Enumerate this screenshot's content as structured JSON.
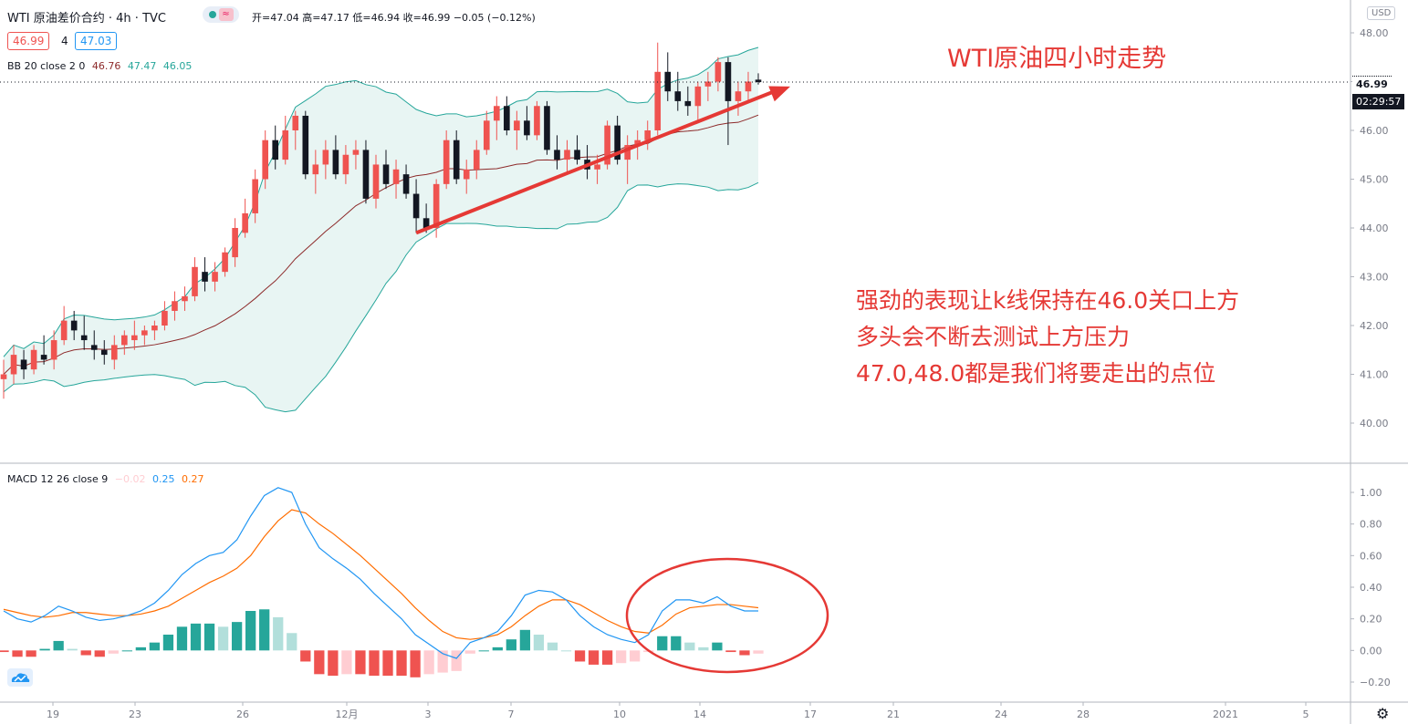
{
  "header": {
    "title": "WTI 原油差价合约 · 4h · TVC",
    "ohlc": "开=47.04 高=47.17 低=46.94 收=46.99 −0.05 (−0.12%)",
    "bid": "46.99",
    "spread": "4",
    "ask": "47.03"
  },
  "indicators": {
    "bb": {
      "label": "BB 20 close 2 0",
      "basis": "46.76",
      "upper": "47.47",
      "lower": "46.05"
    },
    "macd": {
      "label": "MACD 12 26 close 9",
      "hist": "−0.02",
      "macd": "0.25",
      "signal": "0.27"
    }
  },
  "price_scale": {
    "currency": "USD",
    "last_price": "46.99",
    "countdown": "02:29:57"
  },
  "annotations": {
    "title": "WTI原油四小时走势",
    "lines": [
      "强劲的表现让k线保持在46.0关口上方",
      "多头会不断去测试上方压力",
      "47.0,48.0都是我们将要走出的点位"
    ]
  },
  "colors": {
    "up": "#ef5350",
    "down": "#131722",
    "bb_line": "#26a69a",
    "bb_fill": "#e8f5f3",
    "basis": "#8d2a2a",
    "macd_line": "#2196f3",
    "signal_line": "#ff6d00",
    "hist_up_strong": "#26a69a",
    "hist_up_weak": "#b2dfdb",
    "hist_down_strong": "#ef5350",
    "hist_down_weak": "#ffcdd2",
    "annotation": "#e53935"
  },
  "chart_data": [
    {
      "type": "candlestick",
      "title": "WTI 原油差价合约 4h",
      "x_ticks": [
        "19",
        "23",
        "26",
        "12月",
        "3",
        "7",
        "10",
        "14",
        "17",
        "21",
        "24",
        "28",
        "2021",
        "5"
      ],
      "y_ticks": [
        "40.00",
        "41.00",
        "42.00",
        "43.00",
        "44.00",
        "45.00",
        "46.00",
        "47.00",
        "48.00"
      ],
      "ylim": [
        39.2,
        48.3
      ],
      "candles": [
        [
          40.9,
          41.3,
          40.5,
          41.0
        ],
        [
          41.0,
          41.6,
          40.8,
          41.4
        ],
        [
          41.3,
          41.5,
          40.9,
          41.1
        ],
        [
          41.1,
          41.6,
          41.0,
          41.5
        ],
        [
          41.4,
          41.8,
          41.2,
          41.3
        ],
        [
          41.3,
          41.9,
          41.1,
          41.7
        ],
        [
          41.7,
          42.4,
          41.6,
          42.1
        ],
        [
          42.1,
          42.3,
          41.7,
          41.9
        ],
        [
          41.8,
          42.2,
          41.5,
          41.7
        ],
        [
          41.6,
          41.9,
          41.3,
          41.5
        ],
        [
          41.5,
          41.7,
          41.2,
          41.4
        ],
        [
          41.3,
          41.8,
          41.1,
          41.6
        ],
        [
          41.6,
          41.9,
          41.4,
          41.8
        ],
        [
          41.7,
          42.1,
          41.5,
          41.8
        ],
        [
          41.8,
          42.0,
          41.6,
          41.9
        ],
        [
          41.9,
          42.1,
          41.7,
          42.0
        ],
        [
          42.0,
          42.5,
          41.9,
          42.3
        ],
        [
          42.3,
          42.7,
          42.1,
          42.5
        ],
        [
          42.5,
          42.8,
          42.3,
          42.6
        ],
        [
          42.6,
          43.4,
          42.5,
          43.2
        ],
        [
          43.1,
          43.4,
          42.7,
          42.9
        ],
        [
          42.9,
          43.3,
          42.7,
          43.1
        ],
        [
          43.1,
          43.6,
          43.0,
          43.5
        ],
        [
          43.4,
          44.2,
          43.2,
          44.0
        ],
        [
          43.9,
          44.6,
          43.8,
          44.3
        ],
        [
          44.3,
          45.2,
          44.1,
          45.0
        ],
        [
          45.0,
          46.0,
          44.8,
          45.8
        ],
        [
          45.8,
          46.1,
          45.2,
          45.4
        ],
        [
          45.4,
          46.3,
          45.3,
          46.0
        ],
        [
          46.0,
          46.4,
          45.6,
          46.3
        ],
        [
          46.3,
          46.4,
          45.0,
          45.1
        ],
        [
          45.1,
          45.6,
          44.7,
          45.3
        ],
        [
          45.3,
          45.8,
          45.0,
          45.6
        ],
        [
          45.6,
          45.9,
          45.0,
          45.1
        ],
        [
          45.1,
          45.7,
          44.9,
          45.5
        ],
        [
          45.5,
          45.8,
          45.2,
          45.6
        ],
        [
          45.6,
          45.8,
          44.5,
          44.6
        ],
        [
          44.6,
          45.5,
          44.4,
          45.3
        ],
        [
          45.3,
          45.6,
          44.8,
          44.9
        ],
        [
          44.9,
          45.4,
          44.6,
          45.2
        ],
        [
          45.1,
          45.3,
          44.6,
          44.7
        ],
        [
          44.7,
          45.0,
          43.9,
          44.2
        ],
        [
          44.2,
          44.5,
          43.9,
          44.0
        ],
        [
          44.0,
          45.0,
          43.8,
          44.9
        ],
        [
          44.9,
          46.0,
          44.8,
          45.8
        ],
        [
          45.8,
          46.0,
          44.9,
          45.0
        ],
        [
          45.0,
          45.4,
          44.7,
          45.2
        ],
        [
          45.2,
          45.8,
          45.0,
          45.6
        ],
        [
          45.6,
          46.4,
          45.5,
          46.2
        ],
        [
          46.2,
          46.7,
          45.8,
          46.5
        ],
        [
          46.5,
          46.7,
          45.9,
          46.0
        ],
        [
          46.0,
          46.4,
          45.6,
          46.2
        ],
        [
          46.2,
          46.5,
          45.8,
          45.9
        ],
        [
          45.9,
          46.6,
          45.8,
          46.5
        ],
        [
          46.5,
          46.6,
          45.5,
          45.6
        ],
        [
          45.6,
          45.9,
          45.2,
          45.4
        ],
        [
          45.4,
          45.8,
          45.1,
          45.6
        ],
        [
          45.6,
          45.9,
          45.3,
          45.4
        ],
        [
          45.4,
          45.7,
          45.0,
          45.2
        ],
        [
          45.2,
          45.5,
          44.9,
          45.3
        ],
        [
          45.3,
          46.2,
          45.2,
          46.1
        ],
        [
          46.1,
          46.3,
          45.3,
          45.4
        ],
        [
          45.4,
          45.9,
          44.9,
          45.7
        ],
        [
          45.7,
          46.0,
          45.4,
          45.8
        ],
        [
          45.8,
          46.2,
          45.6,
          46.0
        ],
        [
          46.0,
          47.8,
          45.9,
          47.2
        ],
        [
          47.2,
          47.6,
          46.6,
          46.8
        ],
        [
          46.8,
          47.2,
          46.4,
          46.6
        ],
        [
          46.6,
          46.9,
          46.3,
          46.5
        ],
        [
          46.5,
          47.0,
          46.2,
          46.9
        ],
        [
          46.9,
          47.2,
          46.6,
          47.0
        ],
        [
          47.0,
          47.5,
          46.8,
          47.4
        ],
        [
          47.4,
          47.5,
          45.7,
          46.6
        ],
        [
          46.6,
          47.0,
          46.3,
          46.8
        ],
        [
          46.8,
          47.2,
          46.6,
          47.0
        ],
        [
          47.04,
          47.17,
          46.94,
          46.99
        ]
      ],
      "bollinger": {
        "period": 20,
        "stddev": 2,
        "basis_last": 46.76,
        "upper_last": 47.47,
        "lower_last": 46.05
      }
    },
    {
      "type": "line",
      "title": "MACD 12 26 close 9",
      "y_ticks": [
        "−0.20",
        "0.00",
        "0.20",
        "0.40",
        "0.60",
        "0.80",
        "1.00"
      ],
      "ylim": [
        -0.26,
        1.08
      ],
      "series": [
        {
          "name": "MACD",
          "values": [
            0.25,
            0.2,
            0.18,
            0.22,
            0.28,
            0.25,
            0.21,
            0.19,
            0.2,
            0.22,
            0.25,
            0.3,
            0.38,
            0.48,
            0.55,
            0.6,
            0.62,
            0.7,
            0.85,
            0.98,
            1.03,
            1.0,
            0.8,
            0.65,
            0.58,
            0.52,
            0.45,
            0.36,
            0.28,
            0.2,
            0.1,
            0.04,
            -0.02,
            -0.05,
            0.05,
            0.08,
            0.12,
            0.22,
            0.35,
            0.38,
            0.37,
            0.32,
            0.22,
            0.15,
            0.1,
            0.07,
            0.05,
            0.1,
            0.25,
            0.32,
            0.32,
            0.3,
            0.34,
            0.28,
            0.25,
            0.25
          ]
        },
        {
          "name": "Signal",
          "values": [
            0.26,
            0.24,
            0.22,
            0.21,
            0.22,
            0.24,
            0.24,
            0.23,
            0.22,
            0.22,
            0.23,
            0.25,
            0.28,
            0.33,
            0.38,
            0.43,
            0.47,
            0.52,
            0.6,
            0.72,
            0.82,
            0.89,
            0.87,
            0.8,
            0.74,
            0.67,
            0.6,
            0.52,
            0.44,
            0.36,
            0.27,
            0.19,
            0.12,
            0.08,
            0.07,
            0.08,
            0.1,
            0.15,
            0.22,
            0.28,
            0.32,
            0.32,
            0.29,
            0.24,
            0.19,
            0.15,
            0.12,
            0.11,
            0.16,
            0.23,
            0.27,
            0.28,
            0.29,
            0.29,
            0.28,
            0.27
          ]
        },
        {
          "name": "Histogram",
          "values": [
            -0.01,
            -0.04,
            -0.04,
            0.01,
            0.06,
            0.01,
            -0.03,
            -0.04,
            -0.02,
            0.0,
            0.02,
            0.05,
            0.1,
            0.15,
            0.17,
            0.17,
            0.15,
            0.18,
            0.25,
            0.26,
            0.21,
            0.11,
            -0.07,
            -0.15,
            -0.16,
            -0.15,
            -0.15,
            -0.16,
            -0.16,
            -0.16,
            -0.17,
            -0.15,
            -0.14,
            -0.13,
            -0.02,
            0.0,
            0.02,
            0.07,
            0.13,
            0.1,
            0.05,
            0.0,
            -0.07,
            -0.09,
            -0.09,
            -0.08,
            -0.07,
            -0.01,
            0.09,
            0.09,
            0.05,
            0.02,
            0.05,
            -0.01,
            -0.03,
            -0.02
          ]
        }
      ]
    }
  ]
}
